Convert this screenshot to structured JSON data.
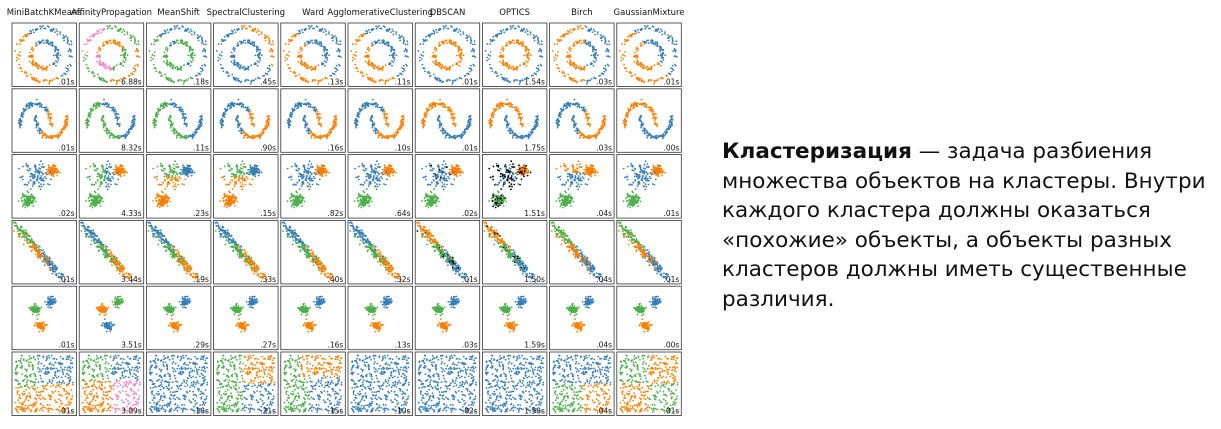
{
  "chart_data": {
    "type": "scatter",
    "title": "",
    "columns": [
      "MiniBatchKMeans",
      "AffinityPropagation",
      "MeanShift",
      "SpectralClustering",
      "Ward",
      "AgglomerativeClustering",
      "DBSCAN",
      "OPTICS",
      "Birch",
      "GaussianMixture"
    ],
    "datasets": [
      "noisy_circles",
      "noisy_moons",
      "varied",
      "aniso",
      "blobs",
      "no_structure"
    ],
    "times": [
      [
        ".01s",
        "6.88s",
        ".18s",
        ".45s",
        ".13s",
        ".11s",
        ".01s",
        "1.54s",
        ".03s",
        ".01s"
      ],
      [
        ".01s",
        "8.32s",
        ".11s",
        ".90s",
        ".16s",
        ".10s",
        ".01s",
        "1.75s",
        ".03s",
        ".00s"
      ],
      [
        ".02s",
        "4.33s",
        ".23s",
        ".15s",
        ".82s",
        ".64s",
        ".02s",
        "1.51s",
        ".04s",
        ".01s"
      ],
      [
        ".01s",
        "3.44s",
        ".19s",
        ".33s",
        ".40s",
        ".32s",
        ".01s",
        "1.50s",
        ".04s",
        ".01s"
      ],
      [
        ".01s",
        "3.51s",
        ".29s",
        ".27s",
        ".16s",
        ".13s",
        ".03s",
        "1.59s",
        ".04s",
        ".00s"
      ],
      [
        ".01s",
        "3.09s",
        ".18s",
        ".21s",
        ".15s",
        ".10s",
        ".02s",
        "1.58s",
        ".04s",
        ".01s"
      ]
    ],
    "cluster_colors": [
      "#377eb8",
      "#ff7f00",
      "#4daf4a",
      "#f781bf",
      "#000000"
    ]
  },
  "description": {
    "term": "Кластеризация",
    "rest": " — задача разбиения множества объектов на кластеры. Внутри каждого кластера должны оказаться «похожие» объекты, а объекты разных кластеров должны иметь существенные различия."
  }
}
